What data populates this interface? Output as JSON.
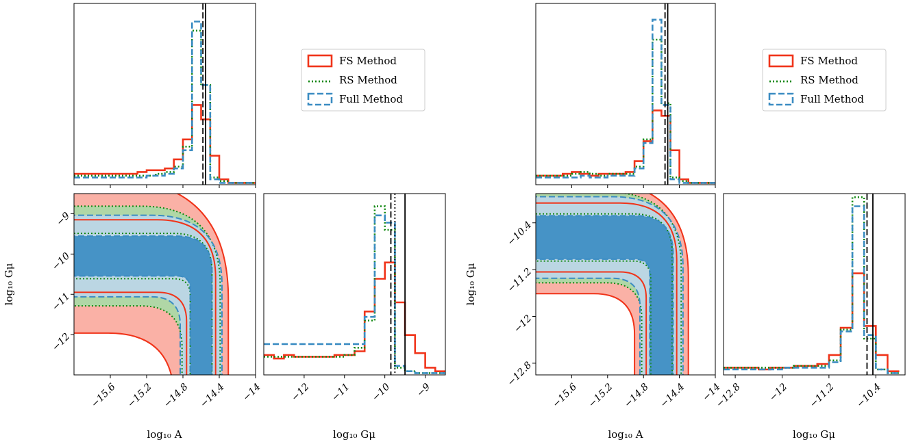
{
  "colors": {
    "fs": "#f0341a",
    "rs": "#118811",
    "full": "#3a8cc2",
    "fs_fill": "#f9a99c",
    "rs_fill": "#a7dca6",
    "full_fill": "#bcd6ea",
    "full_core": "#3a8cc2",
    "truth": "#000000"
  },
  "legend": [
    {
      "key": "fs",
      "label": "FS Method",
      "style": "solid"
    },
    {
      "key": "rs",
      "label": "RS Method",
      "style": "dotted"
    },
    {
      "key": "full",
      "label": "Full Method",
      "style": "dashed"
    }
  ],
  "chart_data": [
    {
      "type": "corner",
      "panels": {
        "hist_A": {
          "xlim": [
            -16.0,
            -14.0
          ],
          "truth_lines": [
            {
              "x": -14.55,
              "style": "solid"
            },
            {
              "x": -14.58,
              "style": "dashed"
            }
          ],
          "bin_edges": [
            -16.0,
            -15.9,
            -15.8,
            -15.7,
            -15.6,
            -15.5,
            -15.4,
            -15.3,
            -15.2,
            -15.1,
            -15.0,
            -14.9,
            -14.8,
            -14.7,
            -14.6,
            -14.5,
            -14.4,
            -14.3,
            -14.2,
            -14.1,
            -14.0
          ],
          "fs": [
            0.06,
            0.06,
            0.06,
            0.06,
            0.06,
            0.06,
            0.06,
            0.07,
            0.08,
            0.08,
            0.09,
            0.14,
            0.25,
            0.44,
            0.36,
            0.16,
            0.03,
            0.01,
            0.01,
            0.01
          ],
          "rs": [
            0.05,
            0.05,
            0.05,
            0.05,
            0.05,
            0.05,
            0.05,
            0.05,
            0.05,
            0.06,
            0.07,
            0.1,
            0.21,
            0.85,
            0.55,
            0.04,
            0.02,
            0.01,
            0.01,
            0.01
          ],
          "full": [
            0.04,
            0.04,
            0.04,
            0.04,
            0.04,
            0.04,
            0.04,
            0.04,
            0.05,
            0.05,
            0.06,
            0.09,
            0.19,
            0.9,
            0.55,
            0.03,
            0.01,
            0.01,
            0.01,
            0.01
          ]
        },
        "hist_Gmu": {
          "xlim": [
            -13.0,
            -8.5
          ],
          "ticks": [
            -12,
            -11,
            -10,
            -9
          ],
          "truth_lines": [
            {
              "x": -9.5,
              "style": "solid"
            },
            {
              "x": -9.85,
              "style": "dashed"
            },
            {
              "x": -9.75,
              "style": "dotted"
            }
          ],
          "bin_edges": [
            -13.0,
            -12.75,
            -12.5,
            -12.25,
            -12.0,
            -11.75,
            -11.5,
            -11.25,
            -11.0,
            -10.75,
            -10.5,
            -10.25,
            -10.0,
            -9.75,
            -9.5,
            -9.25,
            -9.0,
            -8.75,
            -8.5
          ],
          "fs": [
            0.11,
            0.09,
            0.11,
            0.1,
            0.1,
            0.1,
            0.1,
            0.11,
            0.11,
            0.13,
            0.35,
            0.53,
            0.62,
            0.4,
            0.22,
            0.12,
            0.04,
            0.02
          ],
          "rs": [
            0.1,
            0.1,
            0.1,
            0.1,
            0.1,
            0.1,
            0.1,
            0.1,
            0.11,
            0.15,
            0.3,
            0.93,
            0.8,
            0.04,
            0.02,
            0.01,
            0.01,
            0.01
          ],
          "full": [
            0.17,
            0.17,
            0.17,
            0.17,
            0.17,
            0.17,
            0.17,
            0.17,
            0.17,
            0.17,
            0.32,
            0.88,
            0.84,
            0.05,
            0.02,
            0.01,
            0.01,
            0.01
          ]
        },
        "joint": {
          "xlim": [
            -16.0,
            -14.0
          ],
          "ylim": [
            -13.0,
            -8.5
          ],
          "xticks": [
            -15.6,
            -15.2,
            -14.8,
            -14.4,
            -14.0
          ],
          "yticks": [
            -9,
            -10,
            -11,
            -12
          ],
          "xlabel": "log₁₀ A",
          "ylabel": "log₁₀ Gμ",
          "contours": {
            "corner_x": -14.6,
            "corner_y": -10.05,
            "bands": [
              {
                "key": "fs",
                "level": 2,
                "w": 0.3,
                "h": 0.85
              },
              {
                "key": "fs",
                "level": 1,
                "w": 0.16,
                "h": 0.4
              },
              {
                "key": "rs",
                "level": 2,
                "w": 0.21,
                "h": 0.55
              },
              {
                "key": "rs",
                "level": 1,
                "w": 0.12,
                "h": 0.25
              },
              {
                "key": "full",
                "level": 2,
                "w": 0.23,
                "h": 0.45
              },
              {
                "key": "full",
                "level": 1,
                "w": 0.12,
                "h": 0.22
              }
            ]
          }
        },
        "xlabel_hist": "log₁₀ Gμ"
      }
    },
    {
      "type": "corner",
      "panels": {
        "hist_A": {
          "xlim": [
            -16.0,
            -14.0
          ],
          "truth_lines": [
            {
              "x": -14.53,
              "style": "solid"
            },
            {
              "x": -14.56,
              "style": "dashed"
            }
          ],
          "bin_edges": [
            -16.0,
            -15.9,
            -15.8,
            -15.7,
            -15.6,
            -15.5,
            -15.4,
            -15.3,
            -15.2,
            -15.1,
            -15.0,
            -14.9,
            -14.8,
            -14.7,
            -14.6,
            -14.5,
            -14.4,
            -14.3,
            -14.2,
            -14.1,
            -14.0
          ],
          "fs": [
            0.05,
            0.05,
            0.05,
            0.06,
            0.07,
            0.06,
            0.05,
            0.06,
            0.06,
            0.06,
            0.07,
            0.13,
            0.24,
            0.41,
            0.38,
            0.19,
            0.03,
            0.01,
            0.01,
            0.01
          ],
          "rs": [
            0.05,
            0.05,
            0.05,
            0.05,
            0.06,
            0.07,
            0.06,
            0.05,
            0.06,
            0.06,
            0.06,
            0.1,
            0.25,
            0.8,
            0.45,
            0.04,
            0.02,
            0.01,
            0.01,
            0.01
          ],
          "full": [
            0.04,
            0.04,
            0.04,
            0.04,
            0.04,
            0.05,
            0.04,
            0.04,
            0.05,
            0.05,
            0.05,
            0.09,
            0.23,
            0.91,
            0.44,
            0.03,
            0.01,
            0.01,
            0.01,
            0.01
          ]
        },
        "hist_Gmu": {
          "xlim": [
            -13.0,
            -9.9
          ],
          "ticks": [
            -12.8,
            -12.0,
            -11.2,
            -10.4
          ],
          "truth_lines": [
            {
              "x": -10.45,
              "style": "solid"
            },
            {
              "x": -10.55,
              "style": "dashed"
            }
          ],
          "bin_edges": [
            -13.0,
            -12.8,
            -12.6,
            -12.4,
            -12.2,
            -12.0,
            -11.8,
            -11.6,
            -11.4,
            -11.2,
            -11.0,
            -10.8,
            -10.6,
            -10.4,
            -10.2,
            -10.0
          ],
          "fs": [
            0.04,
            0.04,
            0.04,
            0.03,
            0.04,
            0.04,
            0.05,
            0.05,
            0.06,
            0.11,
            0.26,
            0.56,
            0.27,
            0.11,
            0.02
          ],
          "rs": [
            0.04,
            0.04,
            0.04,
            0.04,
            0.04,
            0.04,
            0.05,
            0.05,
            0.05,
            0.08,
            0.25,
            0.98,
            0.2,
            0.03,
            0.01
          ],
          "full": [
            0.03,
            0.03,
            0.03,
            0.03,
            0.03,
            0.04,
            0.04,
            0.04,
            0.04,
            0.07,
            0.24,
            0.93,
            0.22,
            0.03,
            0.01
          ]
        },
        "joint": {
          "xlim": [
            -16.0,
            -14.0
          ],
          "ylim": [
            -13.0,
            -9.9
          ],
          "xticks": [
            -15.6,
            -15.2,
            -14.8,
            -14.4,
            -14.0
          ],
          "yticks": [
            -10.4,
            -11.2,
            -12.0,
            -12.8
          ],
          "xlabel": "log₁₀ A",
          "ylabel": "log₁₀ Gμ",
          "contours": {
            "corner_x": -14.6,
            "corner_y": -10.65,
            "bands": [
              {
                "key": "fs",
                "level": 2,
                "w": 0.3,
                "h": 0.62
              },
              {
                "key": "fs",
                "level": 1,
                "w": 0.17,
                "h": 0.38
              },
              {
                "key": "rs",
                "level": 2,
                "w": 0.22,
                "h": 0.5
              },
              {
                "key": "rs",
                "level": 1,
                "w": 0.12,
                "h": 0.26
              },
              {
                "key": "full",
                "level": 2,
                "w": 0.24,
                "h": 0.45
              },
              {
                "key": "full",
                "level": 1,
                "w": 0.13,
                "h": 0.24
              }
            ]
          }
        },
        "xlabel_hist": "log₁₀ Gμ"
      }
    }
  ]
}
